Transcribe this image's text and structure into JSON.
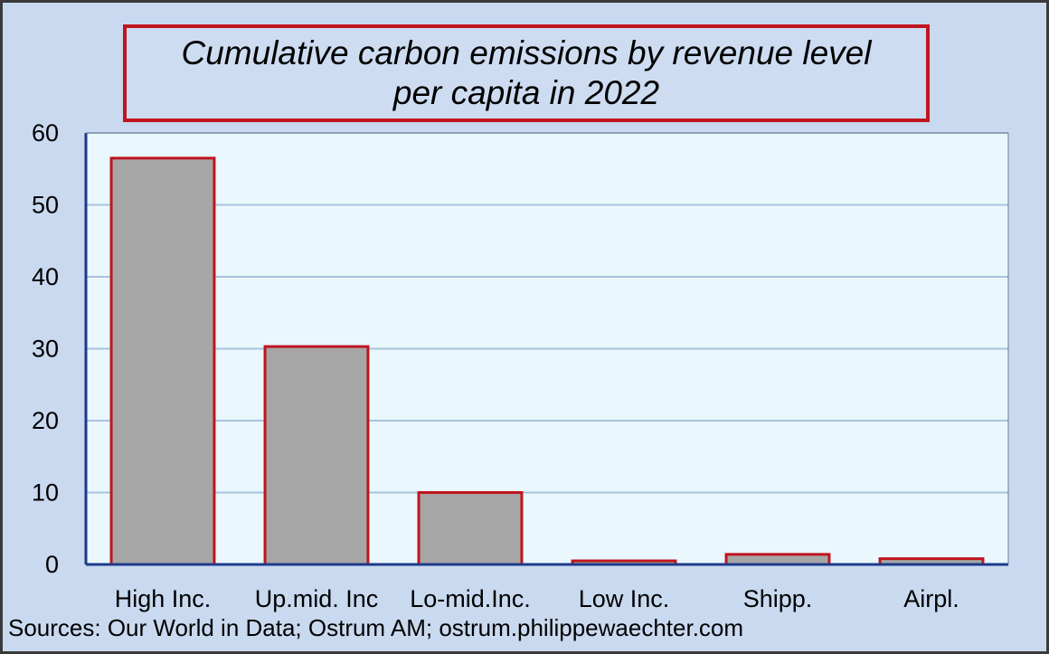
{
  "chart_data": {
    "type": "bar",
    "title_lines": [
      "Cumulative carbon emissions by revenue level",
      "per capita in 2022"
    ],
    "categories": [
      "High Inc.",
      "Up.mid. Inc",
      "Lo-mid.Inc.",
      "Low Inc.",
      "Shipp.",
      "Airpl."
    ],
    "values": [
      56.5,
      30.3,
      10.0,
      0.5,
      1.4,
      0.8
    ],
    "ylim": [
      0,
      60
    ],
    "yticks": [
      0,
      10,
      20,
      30,
      40,
      50,
      60
    ],
    "xlabel": "",
    "ylabel": "",
    "grid": true,
    "legend": "none"
  },
  "source": "Sources: Our World in Data; Ostrum AM; ostrum.philippewaechter.com",
  "colors": {
    "background": "#c9d9ef",
    "plot_area": "#eaf7fd",
    "bar_fill": "#a6a6a6",
    "bar_edge": "#c0151f",
    "axis": "#1f3a8a",
    "grid": "#a9c3df",
    "title_border": "#c0151f"
  }
}
